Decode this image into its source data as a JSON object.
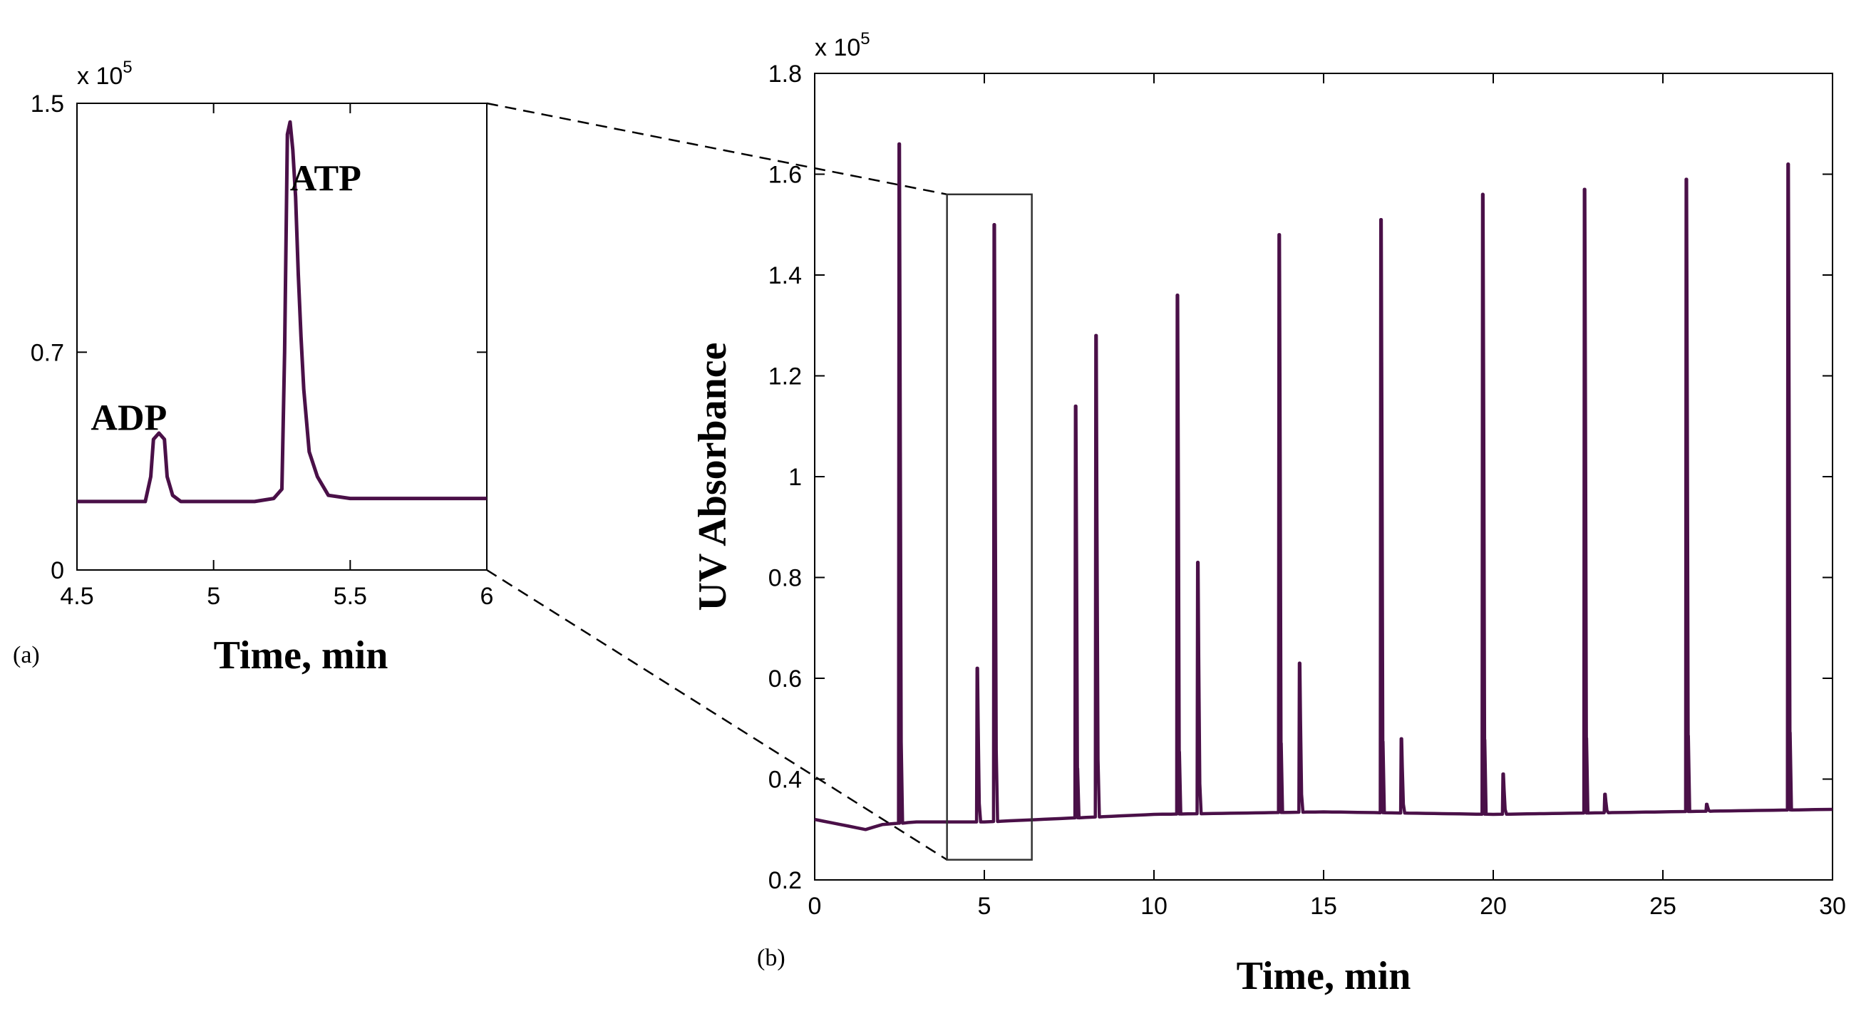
{
  "colors": {
    "trace": "#4a1048",
    "axis": "#000000",
    "box": "#333333"
  },
  "chart_data": [
    {
      "panel": "(a)",
      "type": "line",
      "xlabel": "Time, min",
      "ylabel": "",
      "exponent": "x 10",
      "exponent_power": "5",
      "xlim": [
        4.5,
        6
      ],
      "ylim": [
        0,
        1.5
      ],
      "xticks": [
        "4.5",
        "5",
        "5.5",
        "6"
      ],
      "xtick_values": [
        4.5,
        5,
        5.5,
        6
      ],
      "yticks": [
        "0",
        "0.7",
        "1.5"
      ],
      "ytick_values": [
        0,
        0.7,
        1.5
      ],
      "annotations": [
        {
          "text": "ADP",
          "x": 4.69,
          "y": 0.45
        },
        {
          "text": "ATP",
          "x": 5.41,
          "y": 1.22
        }
      ],
      "series": [
        {
          "x": [
            4.5,
            4.6,
            4.7,
            4.75,
            4.77,
            4.78,
            4.8,
            4.82,
            4.83,
            4.85,
            4.88,
            4.95,
            5.05,
            5.15,
            5.22,
            5.25,
            5.26,
            5.27,
            5.28,
            5.29,
            5.3,
            5.31,
            5.32,
            5.33,
            5.34,
            5.35,
            5.38,
            5.42,
            5.5,
            5.6,
            5.8,
            6.0
          ],
          "y": [
            0.22,
            0.22,
            0.22,
            0.22,
            0.3,
            0.42,
            0.44,
            0.42,
            0.3,
            0.24,
            0.22,
            0.22,
            0.22,
            0.22,
            0.23,
            0.26,
            0.7,
            1.4,
            1.44,
            1.35,
            1.2,
            0.95,
            0.75,
            0.58,
            0.48,
            0.38,
            0.3,
            0.24,
            0.23,
            0.23,
            0.23,
            0.23
          ]
        }
      ]
    },
    {
      "panel": "(b)",
      "type": "line",
      "xlabel": "Time, min",
      "ylabel": "UV Absorbance",
      "exponent": "x 10",
      "exponent_power": "5",
      "xlim": [
        0,
        30
      ],
      "ylim": [
        0.2,
        1.8
      ],
      "xticks": [
        "0",
        "5",
        "10",
        "15",
        "20",
        "25",
        "30"
      ],
      "xtick_values": [
        0,
        5,
        10,
        15,
        20,
        25,
        30
      ],
      "yticks": [
        "0.2",
        "0.4",
        "0.6",
        "0.8",
        "1",
        "1.2",
        "1.4",
        "1.6",
        "1.8"
      ],
      "ytick_values": [
        0.2,
        0.4,
        0.6,
        0.8,
        1,
        1.2,
        1.4,
        1.6,
        1.8
      ],
      "zoom_box": {
        "x": [
          3.9,
          6.4
        ],
        "y": [
          0.24,
          1.56
        ]
      },
      "baseline": [
        [
          0,
          0.32
        ],
        [
          1.5,
          0.3
        ],
        [
          2,
          0.31
        ],
        [
          3,
          0.315
        ],
        [
          5,
          0.315
        ],
        [
          10,
          0.33
        ],
        [
          15,
          0.335
        ],
        [
          20,
          0.33
        ],
        [
          25,
          0.335
        ],
        [
          30,
          0.34
        ]
      ],
      "peaks": [
        {
          "t": 2.5,
          "h": 1.66
        },
        {
          "t": 4.8,
          "h": 0.62
        },
        {
          "t": 5.3,
          "h": 1.5
        },
        {
          "t": 7.7,
          "h": 1.14
        },
        {
          "t": 8.3,
          "h": 1.28
        },
        {
          "t": 10.7,
          "h": 1.36
        },
        {
          "t": 11.3,
          "h": 0.83
        },
        {
          "t": 13.7,
          "h": 1.48
        },
        {
          "t": 14.3,
          "h": 0.63
        },
        {
          "t": 16.7,
          "h": 1.51
        },
        {
          "t": 17.3,
          "h": 0.48
        },
        {
          "t": 19.7,
          "h": 1.56
        },
        {
          "t": 20.3,
          "h": 0.41
        },
        {
          "t": 22.7,
          "h": 1.57
        },
        {
          "t": 23.3,
          "h": 0.37
        },
        {
          "t": 25.7,
          "h": 1.59
        },
        {
          "t": 26.3,
          "h": 0.35
        },
        {
          "t": 28.7,
          "h": 1.62
        }
      ]
    }
  ]
}
